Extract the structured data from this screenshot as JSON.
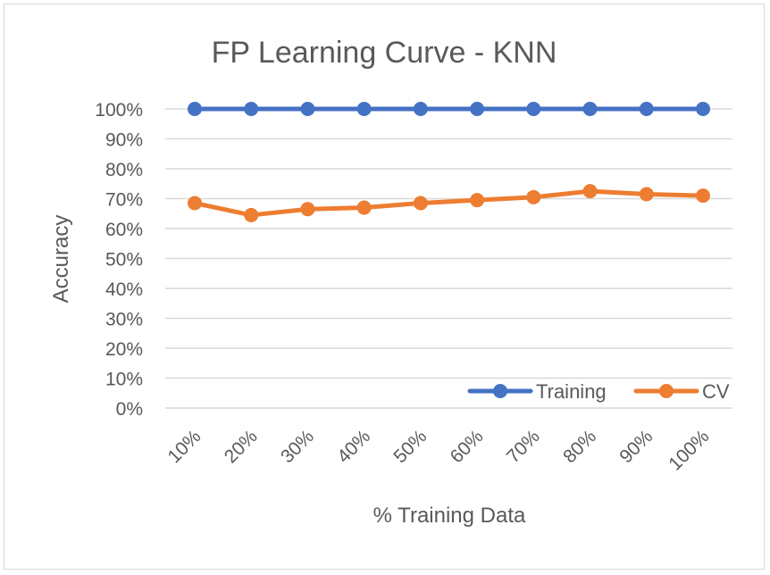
{
  "chart_data": {
    "type": "line",
    "title": "FP Learning Curve - KNN",
    "xlabel": "% Training Data",
    "ylabel": "Accuracy",
    "categories": [
      "10%",
      "20%",
      "30%",
      "40%",
      "50%",
      "60%",
      "70%",
      "80%",
      "90%",
      "100%"
    ],
    "y_ticks": [
      "0%",
      "10%",
      "20%",
      "30%",
      "40%",
      "50%",
      "60%",
      "70%",
      "80%",
      "90%",
      "100%"
    ],
    "ylim": [
      0,
      100
    ],
    "grid": true,
    "legend_position": "bottom-right",
    "series": [
      {
        "name": "Training",
        "color": "#4472C4",
        "values": [
          100,
          100,
          100,
          100,
          100,
          100,
          100,
          100,
          100,
          100
        ]
      },
      {
        "name": "CV",
        "color": "#ED7D31",
        "values": [
          68.5,
          64.5,
          66.5,
          67,
          68.5,
          69.5,
          70.5,
          72.5,
          71.5,
          71
        ]
      }
    ]
  }
}
